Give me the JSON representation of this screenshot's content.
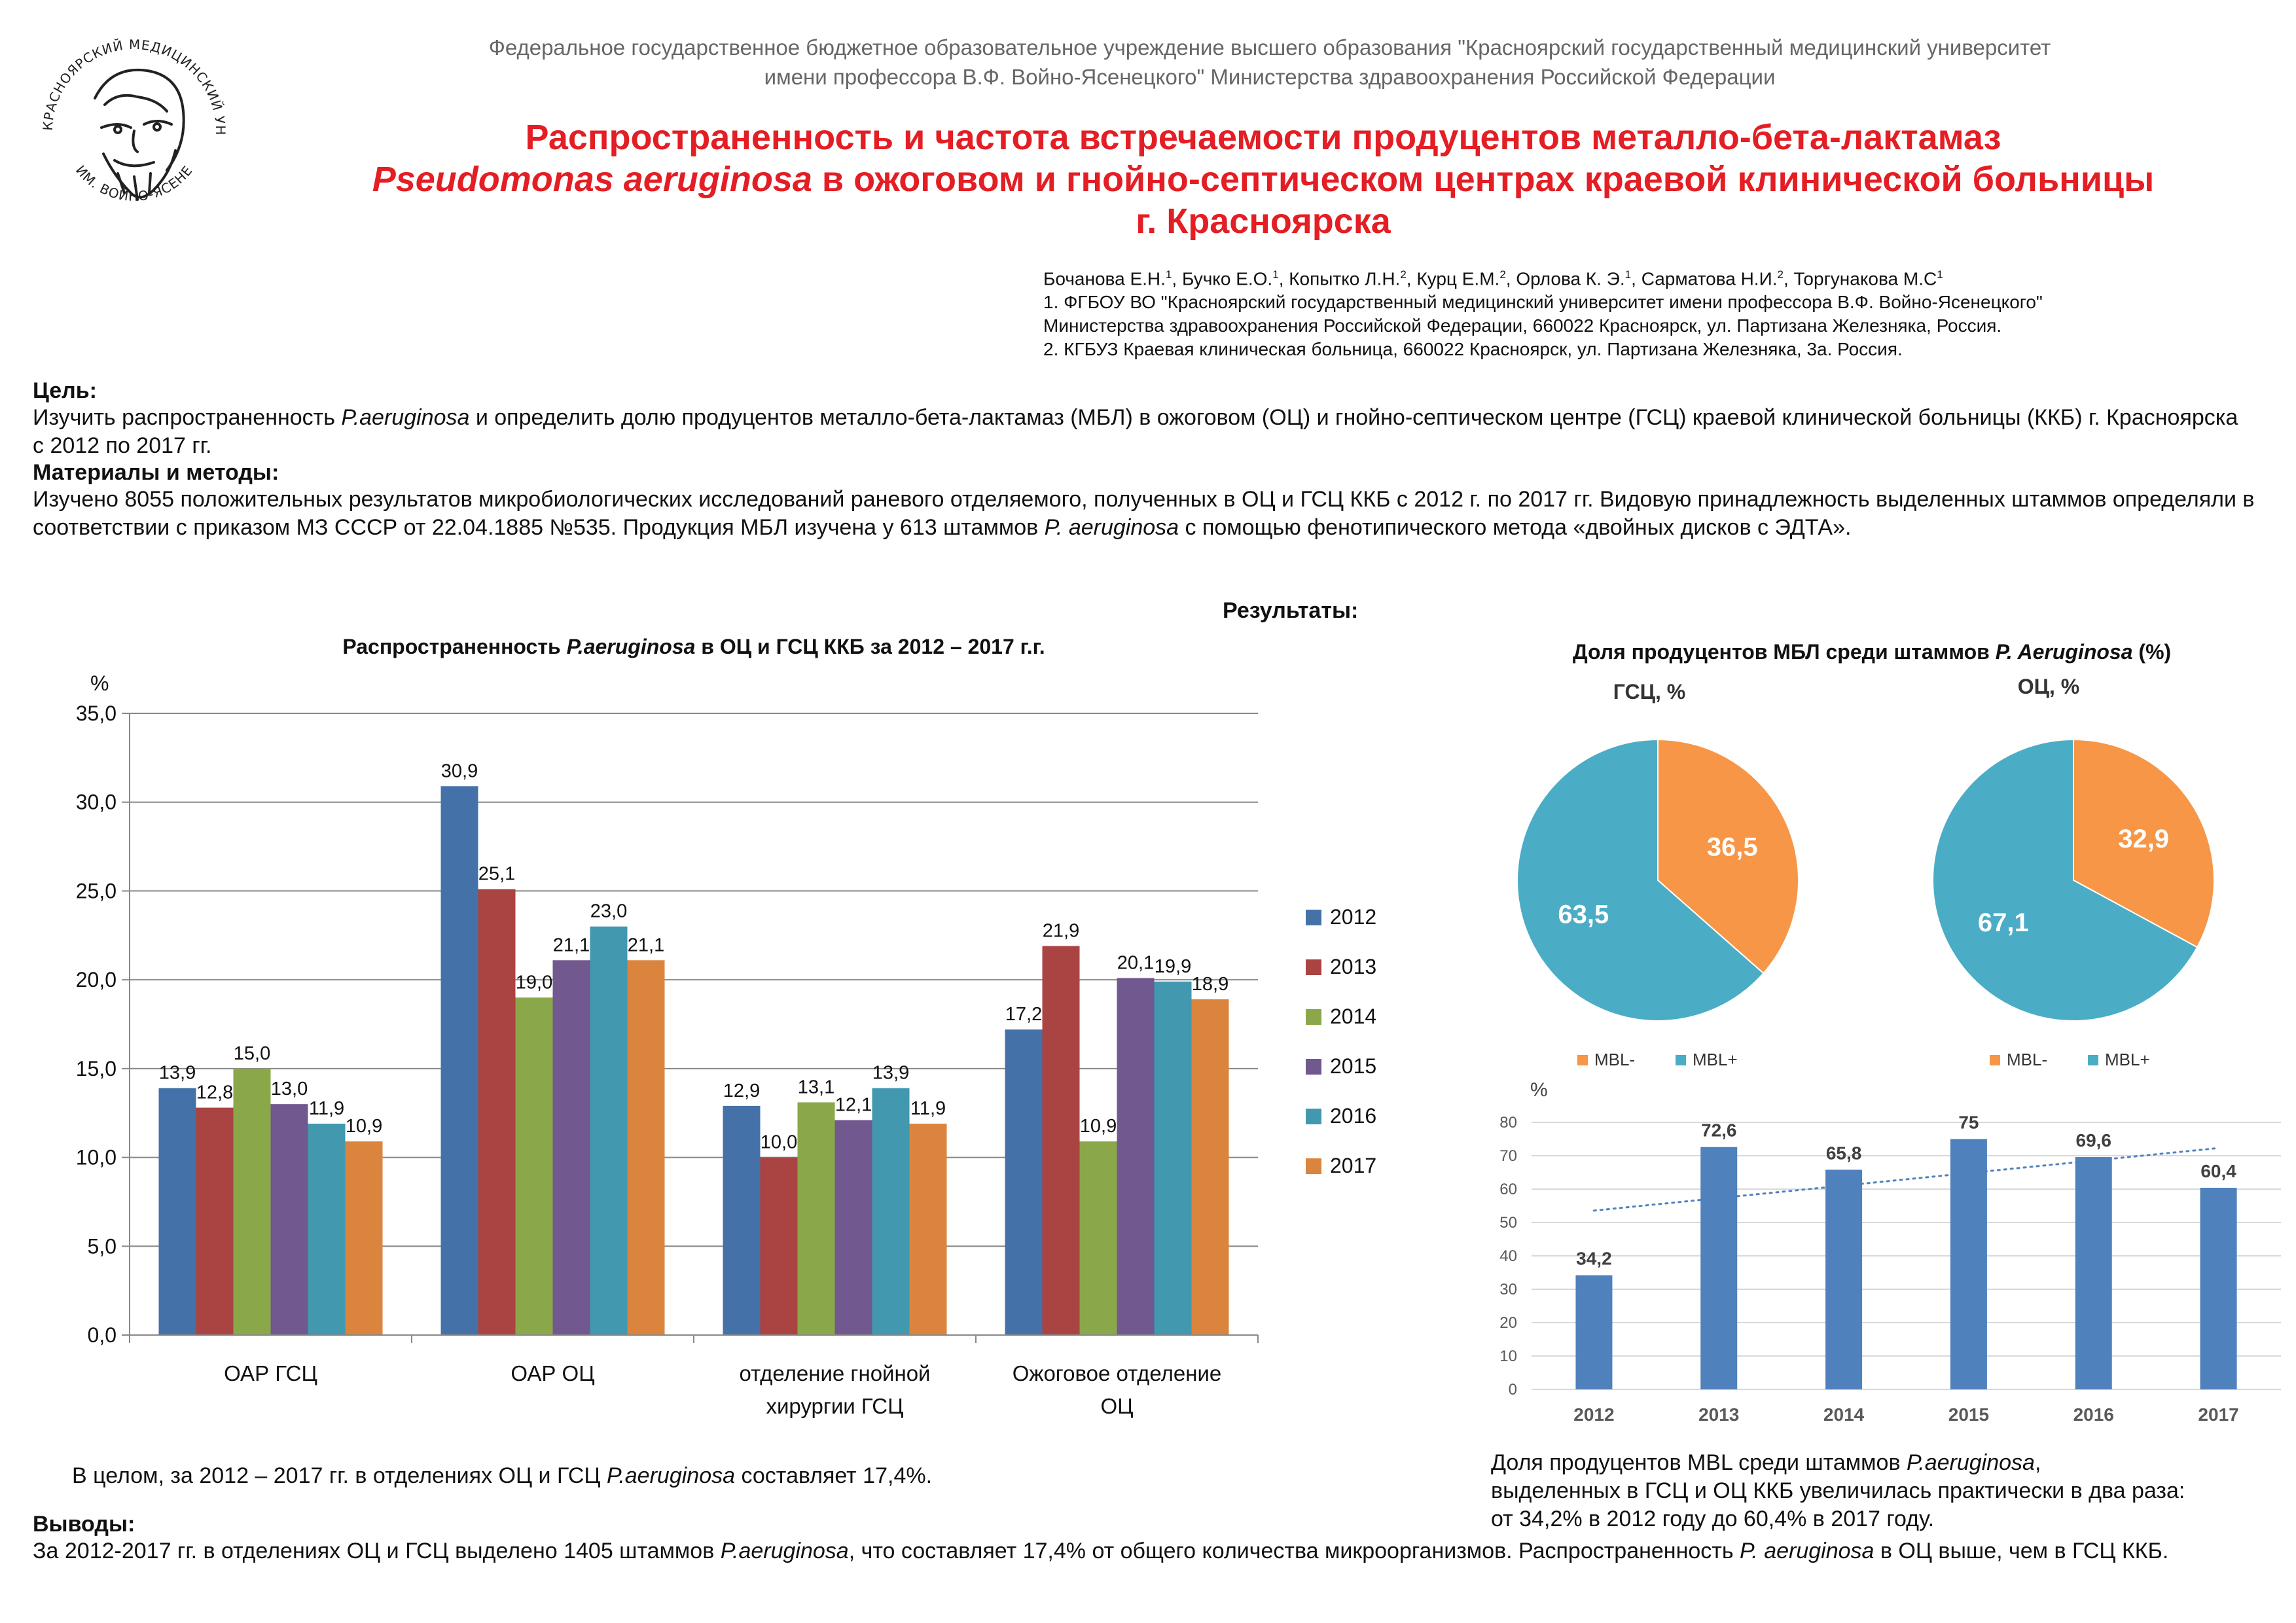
{
  "header": {
    "institution": [
      "Федеральное государственное бюджетное образовательное учреждение высшего образования \"Красноярский государственный медицинский университет",
      "имени профессора В.Ф. Войно-Ясенецкого\" Министерства здравоохранения Российской Федерации"
    ],
    "logo_text_top": "КРАСНОЯРСКИЙ МЕДИЦИНСКИЙ УНИВЕРСИТЕТ",
    "logo_text_bottom": "ИМ. ВОЙНО-ЯСЕНЕЦКОГО",
    "title_line1": "Распространенность и частота встречаемости продуцентов металло-бета-лактамаз",
    "title_line2_italic": "Pseudomonas aeruginosa",
    "title_line2_rest": " в ожоговом и гнойно-септическом центрах краевой клинической больницы",
    "title_line3": "г. Красноярска"
  },
  "authors": {
    "names": [
      {
        "name": "Бочанова Е.Н.",
        "sup": "1"
      },
      {
        "name": "Бучко Е.О.",
        "sup": "1"
      },
      {
        "name": "Копытко Л.Н.",
        "sup": "2"
      },
      {
        "name": "Курц Е.М.",
        "sup": "2"
      },
      {
        "name": "Орлова К. Э.",
        "sup": "1"
      },
      {
        "name": "Сарматова Н.И.",
        "sup": "2"
      },
      {
        "name": "Торгунакова М.С",
        "sup": "1"
      }
    ],
    "affiliation1_line1": "1. ФГБОУ ВО \"Красноярский государственный медицинский университет имени профессора В.Ф. Войно-Ясенецкого\"",
    "affiliation1_line2": "Министерства здравоохранения Российской Федерации, 660022 Красноярск, ул. Партизана Железняка, Россия.",
    "affiliation2": "2. КГБУЗ Краевая клиническая больница, 660022 Красноярск, ул. Партизана Железняка, 3а. Россия."
  },
  "goal": {
    "heading": "Цель:",
    "text_pre": "Изучить распространенность ",
    "text_italic": "P.aeruginosa",
    "text_post": " и определить долю продуцентов металло-бета-лактамаз (МБЛ) в ожоговом (ОЦ) и гнойно-септическом центре (ГСЦ) краевой клинической больницы (ККБ) г. Красноярска",
    "text_line2": "с 2012 по 2017 гг."
  },
  "methods": {
    "heading": "Материалы и методы:",
    "text_pre": "Изучено 8055 положительных результатов микробиологических исследований раневого отделяемого, полученных в ОЦ и ГСЦ ККБ с 2012 г. по 2017 гг. Видовую принадлежность выделенных штаммов определяли в соответствии с приказом МЗ СССР от 22.04.1885 №535. Продукция МБЛ изучена у 613 штаммов ",
    "text_italic": "P. aeruginosa",
    "text_post": " с помощью фенотипического метода «двойных дисков с ЭДТА»."
  },
  "results_label": "Результаты:",
  "bar_chart_title_pre": "Распространенность ",
  "bar_chart_title_italic": "P.aeruginosa",
  "bar_chart_title_post": " в ОЦ и ГСЦ ККБ за 2012 – 2017 г.г.",
  "summary1_pre": "В целом, за 2012 – 2017 гг. в отделениях ОЦ и ГСЦ  ",
  "summary1_italic": "P.aeruginosa",
  "summary1_post": " составляет 17,4%.",
  "pie_title_pre": "Доля продуцентов МБЛ среди штаммов ",
  "pie_title_italic": "P. Aeruginosa",
  "pie_title_post": " (%)",
  "mbl_caption": {
    "pre": "Доля продуцентов MBL среди штаммов ",
    "italic": "P.aeruginosa",
    "post": ",",
    "line2": "выделенных в ГСЦ и ОЦ ККБ увеличилась практически в два раза:",
    "line3": "от 34,2% в 2012 году до 60,4% в 2017 году."
  },
  "conclusions": {
    "heading": "Выводы:",
    "text_pre": "За 2012-2017 гг. в отделениях ОЦ и ГСЦ выделено 1405 штаммов ",
    "text_italic1": "P.aeruginosa",
    "text_mid": ", что составляет 17,4% от общего количества микроорганизмов. Распространенность ",
    "text_italic2": "P. aeruginosa",
    "text_post": " в ОЦ выше, чем в ГСЦ ККБ."
  },
  "colors": {
    "title_red": "#e31e24",
    "s2012": "#4472a8",
    "s2013": "#a94442",
    "s2014": "#8aa84a",
    "s2015": "#71588f",
    "s2016": "#4198af",
    "s2017": "#db843d",
    "pie_minus": "#f79646",
    "pie_plus": "#4bacc6",
    "trend_bar": "#4f81bd"
  },
  "chart_data": [
    {
      "type": "bar",
      "ylabel": "%",
      "ylim": [
        0,
        35
      ],
      "yticks": [
        "0,0",
        "5,0",
        "10,0",
        "15,0",
        "20,0",
        "25,0",
        "30,0",
        "35,0"
      ],
      "grid": true,
      "legend": "right",
      "categories": [
        [
          "ОАР ГСЦ"
        ],
        [
          "ОАР ОЦ"
        ],
        [
          "отделение гнойной",
          "хирургии ГСЦ"
        ],
        [
          "Ожоговое отделение",
          "ОЦ"
        ]
      ],
      "series": [
        {
          "name": "2012",
          "values": [
            13.9,
            30.9,
            12.9,
            17.2
          ],
          "labels": [
            "13,9",
            "30,9",
            "12,9",
            "17,2"
          ]
        },
        {
          "name": "2013",
          "values": [
            12.8,
            25.1,
            10.0,
            21.9
          ],
          "labels": [
            "12,8",
            "25,1",
            "10,0",
            "21,9"
          ]
        },
        {
          "name": "2014",
          "values": [
            15.0,
            19.0,
            13.1,
            10.9
          ],
          "labels": [
            "15,0",
            "19,0",
            "13,1",
            "10,9"
          ]
        },
        {
          "name": "2015",
          "values": [
            13.0,
            21.1,
            12.1,
            20.1
          ],
          "labels": [
            "13,0",
            "21,1",
            "12,1",
            "20,1"
          ]
        },
        {
          "name": "2016",
          "values": [
            11.9,
            23.0,
            13.9,
            19.9
          ],
          "labels": [
            "11,9",
            "23,0",
            "13,9",
            "19,9"
          ]
        },
        {
          "name": "2017",
          "values": [
            10.9,
            21.1,
            11.9,
            18.9
          ],
          "labels": [
            "10,9",
            "21,1",
            "11,9",
            "18,9"
          ]
        }
      ]
    },
    {
      "type": "pie",
      "title": "ГСЦ, %",
      "slices": [
        {
          "name": "MBL-",
          "value": 36.5,
          "label": "36,5"
        },
        {
          "name": "MBL+",
          "value": 63.5,
          "label": "63,5"
        }
      ],
      "legend": "bottom"
    },
    {
      "type": "pie",
      "title": "ОЦ, %",
      "slices": [
        {
          "name": "MBL-",
          "value": 32.9,
          "label": "32,9"
        },
        {
          "name": "MBL+",
          "value": 67.1,
          "label": "67,1"
        }
      ],
      "legend": "bottom"
    },
    {
      "type": "bar",
      "ylabel": "%",
      "ylim": [
        0,
        80
      ],
      "yticks": [
        "0",
        "10",
        "20",
        "30",
        "40",
        "50",
        "60",
        "70",
        "80"
      ],
      "grid": true,
      "categories": [
        "2012",
        "2013",
        "2014",
        "2015",
        "2016",
        "2017"
      ],
      "values": [
        34.2,
        72.6,
        65.8,
        75,
        69.6,
        60.4
      ],
      "labels": [
        "34,2",
        "72,6",
        "65,8",
        "75",
        "69,6",
        "60,4"
      ],
      "trendline": "linear"
    }
  ]
}
